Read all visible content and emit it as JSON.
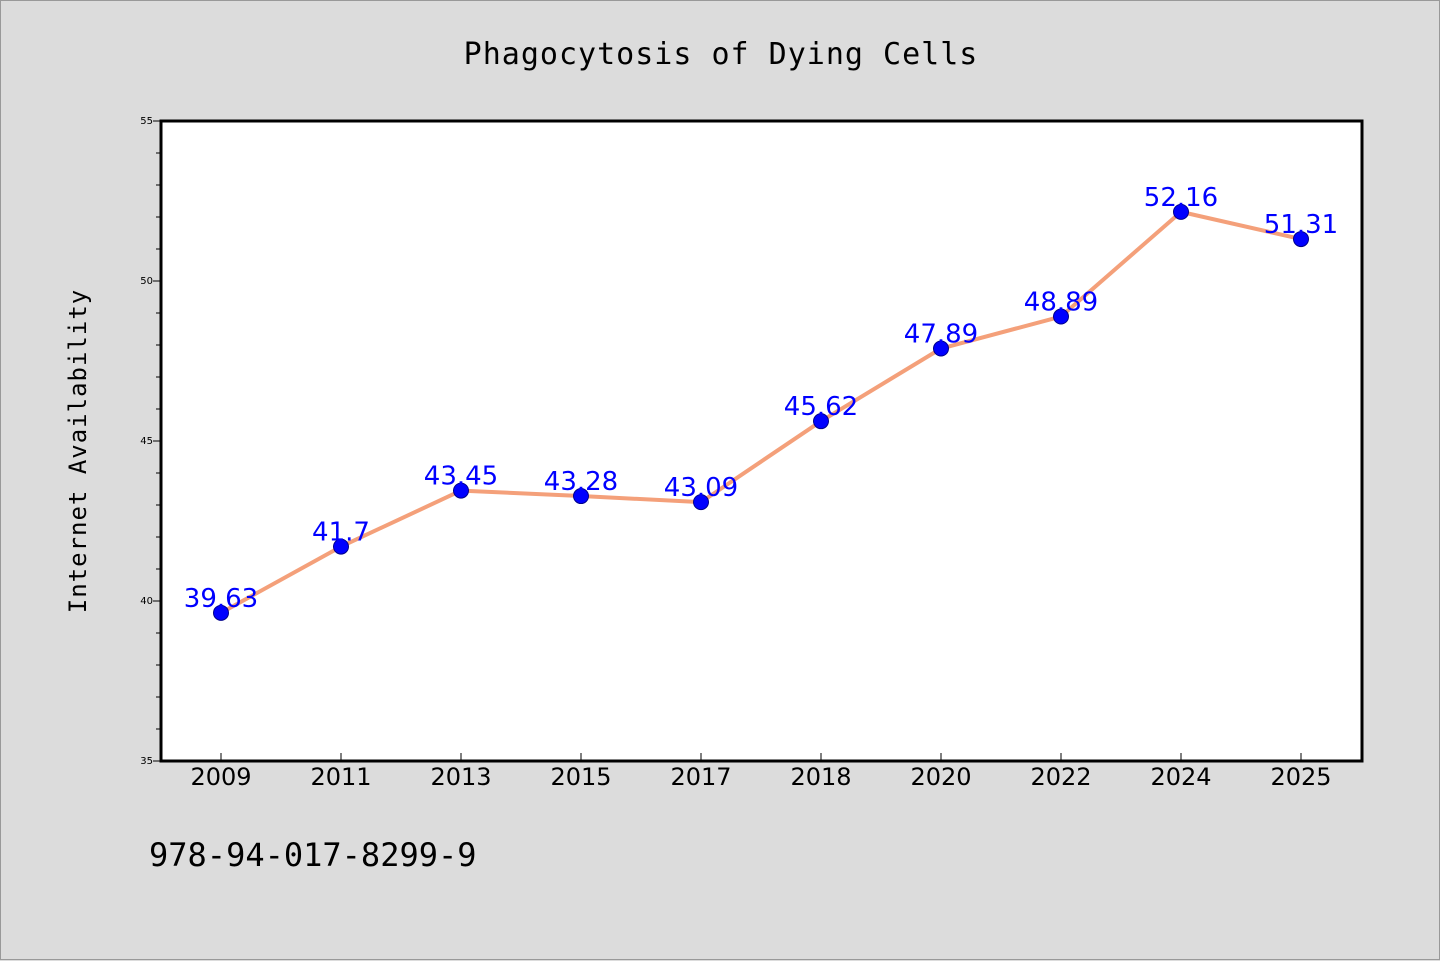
{
  "chart_data": {
    "type": "line",
    "title": "Phagocytosis of Dying Cells",
    "xlabel": "",
    "ylabel": "Internet Availability",
    "categories": [
      "2009",
      "2011",
      "2013",
      "2015",
      "2017",
      "2018",
      "2020",
      "2022",
      "2024",
      "2025"
    ],
    "series": [
      {
        "values": [
          39.63,
          41.7,
          43.45,
          43.28,
          43.09,
          45.62,
          47.89,
          48.89,
          52.16,
          51.31
        ],
        "data_labels": [
          "39.63",
          "41.7",
          "43.45",
          "43.28",
          "43.09",
          "45.62",
          "47.89",
          "48.89",
          "52.16",
          "51.31"
        ]
      }
    ],
    "ylim": [
      35,
      55
    ],
    "yticks": [
      "35",
      "40",
      "45",
      "50",
      "55"
    ],
    "grid": false,
    "legend": "none",
    "colors": {
      "line": "#f4a07a",
      "marker": "#0000ff",
      "label": "#0000ff",
      "background": "#dcdcdc",
      "plot_bg": "#ffffff"
    }
  },
  "footer_text": "978-94-017-8299-9"
}
